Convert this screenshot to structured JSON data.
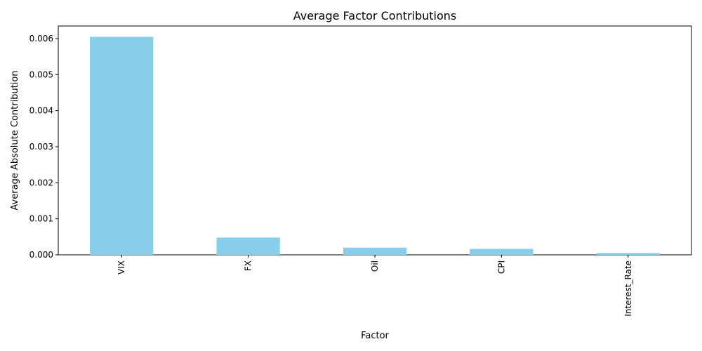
{
  "chart_data": {
    "type": "bar",
    "title": "Average Factor Contributions",
    "xlabel": "Factor",
    "ylabel": "Average Absolute Contribution",
    "categories": [
      "VIX",
      "FX",
      "Oil",
      "CPI",
      "Interest_Rate"
    ],
    "values": [
      0.00605,
      0.00048,
      0.0002,
      0.000165,
      5e-05
    ],
    "ylim": [
      0,
      0.00635
    ],
    "yticks": [
      0,
      0.001,
      0.002,
      0.003,
      0.004,
      0.005,
      0.006
    ],
    "ytick_labels": [
      "0.000",
      "0.001",
      "0.002",
      "0.003",
      "0.004",
      "0.005",
      "0.006"
    ],
    "bar_color": "#87ceeb",
    "grid": false,
    "legend": "none"
  }
}
